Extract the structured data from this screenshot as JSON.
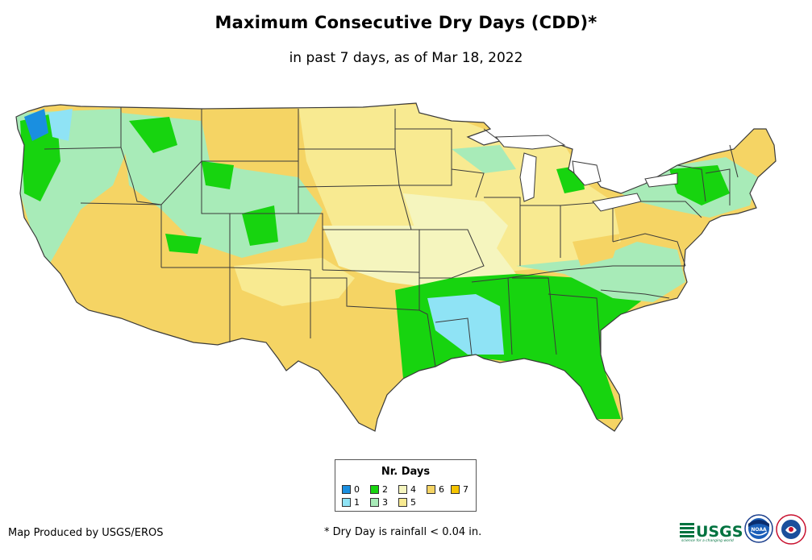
{
  "title": "Maximum Consecutive Dry Days (CDD)*",
  "subtitle": "in past 7 days, as of Mar 18, 2022",
  "legend": {
    "title": "Nr. Days",
    "items": [
      {
        "label": "0",
        "color": "#1a8fe0"
      },
      {
        "label": "1",
        "color": "#8fe3f5"
      },
      {
        "label": "2",
        "color": "#17d40f"
      },
      {
        "label": "3",
        "color": "#a8ebb8"
      },
      {
        "label": "4",
        "color": "#f5f5be"
      },
      {
        "label": "5",
        "color": "#f8ea91"
      },
      {
        "label": "6",
        "color": "#f5d464"
      },
      {
        "label": "7",
        "color": "#f5c400"
      }
    ]
  },
  "footer": {
    "credit": "Map Produced by USGS/EROS",
    "note": "* Dry Day is rainfall < 0.04 in."
  },
  "logos": {
    "usgs": "USGS",
    "usgs_tagline": "science for a changing world",
    "noaa": "NOAA"
  },
  "colors": {
    "state_border": "#3a3a3a",
    "background": "#ffffff"
  }
}
